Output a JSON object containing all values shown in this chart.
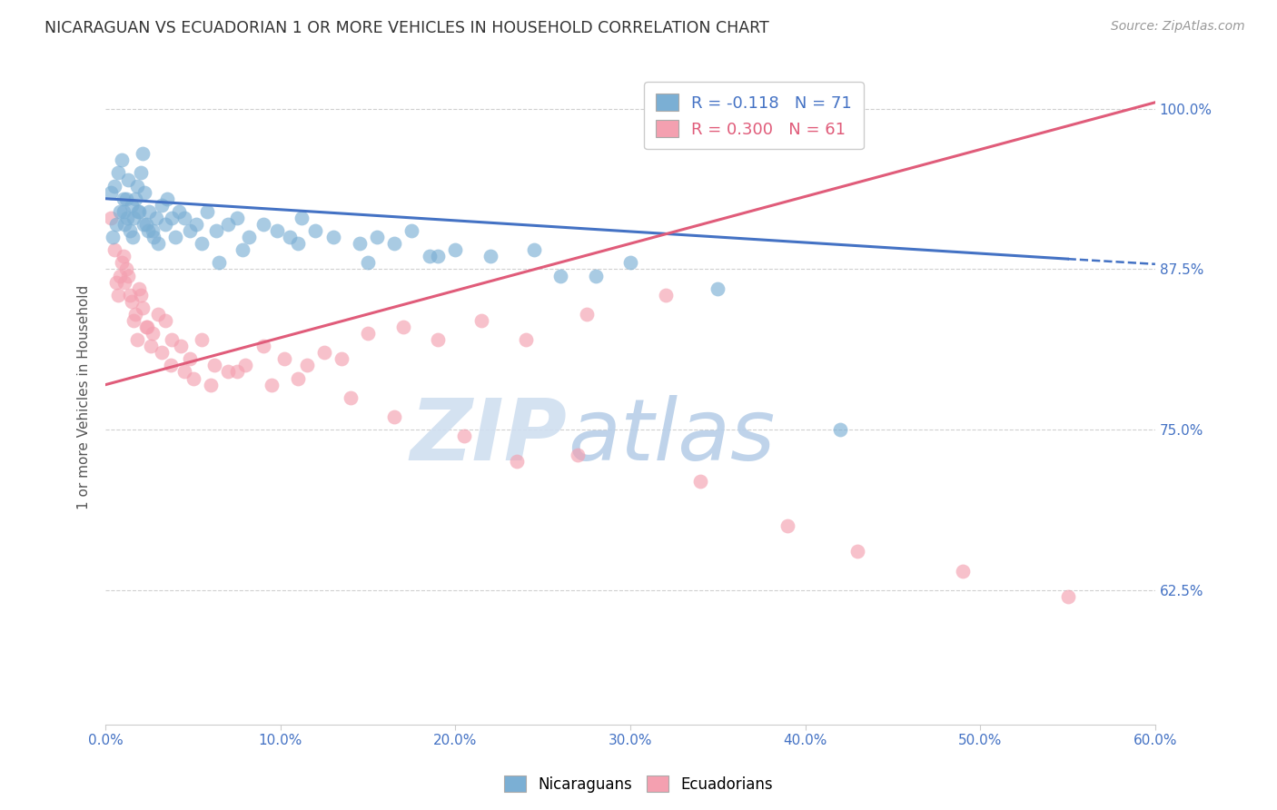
{
  "title": "NICARAGUAN VS ECUADORIAN 1 OR MORE VEHICLES IN HOUSEHOLD CORRELATION CHART",
  "source": "Source: ZipAtlas.com",
  "ylabel": "1 or more Vehicles in Household",
  "xmin": 0.0,
  "xmax": 60.0,
  "ymin": 52.0,
  "ymax": 103.0,
  "yticks": [
    62.5,
    75.0,
    87.5,
    100.0
  ],
  "xticks": [
    0.0,
    10.0,
    20.0,
    30.0,
    40.0,
    50.0,
    60.0
  ],
  "blue_R": -0.118,
  "blue_N": 71,
  "pink_R": 0.3,
  "pink_N": 61,
  "blue_color": "#7bafd4",
  "pink_color": "#f4a0b0",
  "blue_line_color": "#4472c4",
  "pink_line_color": "#e05c7a",
  "watermark_zip": "ZIP",
  "watermark_atlas": "atlas",
  "watermark_color_zip": "#d0dff0",
  "watermark_color_atlas": "#b8cfe8",
  "legend_blue_label": "Nicaraguans",
  "legend_pink_label": "Ecuadorians",
  "blue_trend_x0": 0.0,
  "blue_trend_y0": 93.0,
  "blue_trend_x1": 55.0,
  "blue_trend_y1": 88.3,
  "blue_dash_x0": 55.0,
  "blue_dash_y0": 88.3,
  "blue_dash_x1": 60.0,
  "blue_dash_y1": 87.9,
  "pink_trend_x0": 0.0,
  "pink_trend_y0": 78.5,
  "pink_trend_x1": 60.0,
  "pink_trend_y1": 100.5,
  "blue_scatter_x": [
    0.3,
    0.5,
    0.7,
    0.9,
    1.0,
    1.1,
    1.2,
    1.3,
    1.4,
    1.5,
    1.6,
    1.7,
    1.8,
    1.9,
    2.0,
    2.1,
    2.2,
    2.3,
    2.5,
    2.7,
    2.9,
    3.2,
    3.5,
    3.8,
    4.2,
    4.8,
    5.2,
    5.8,
    6.3,
    7.0,
    7.5,
    8.2,
    9.0,
    9.8,
    10.5,
    11.2,
    12.0,
    13.0,
    14.5,
    15.5,
    16.5,
    17.5,
    18.5,
    20.0,
    22.0,
    24.5,
    26.0,
    30.0,
    35.0,
    0.4,
    0.6,
    0.8,
    1.05,
    1.25,
    1.55,
    1.85,
    2.15,
    2.45,
    2.75,
    3.0,
    3.4,
    4.0,
    4.5,
    5.5,
    6.5,
    7.8,
    11.0,
    15.0,
    19.0,
    28.0,
    42.0
  ],
  "blue_scatter_y": [
    93.5,
    94.0,
    95.0,
    96.0,
    92.0,
    91.0,
    93.0,
    94.5,
    90.5,
    92.5,
    91.5,
    93.0,
    94.0,
    92.0,
    95.0,
    96.5,
    93.5,
    91.0,
    92.0,
    90.5,
    91.5,
    92.5,
    93.0,
    91.5,
    92.0,
    90.5,
    91.0,
    92.0,
    90.5,
    91.0,
    91.5,
    90.0,
    91.0,
    90.5,
    90.0,
    91.5,
    90.5,
    90.0,
    89.5,
    90.0,
    89.5,
    90.5,
    88.5,
    89.0,
    88.5,
    89.0,
    87.0,
    88.0,
    86.0,
    90.0,
    91.0,
    92.0,
    93.0,
    91.5,
    90.0,
    92.0,
    91.0,
    90.5,
    90.0,
    89.5,
    91.0,
    90.0,
    91.5,
    89.5,
    88.0,
    89.0,
    89.5,
    88.0,
    88.5,
    87.0,
    75.0
  ],
  "pink_scatter_x": [
    0.3,
    0.5,
    0.7,
    0.9,
    1.1,
    1.3,
    1.5,
    1.7,
    1.9,
    2.1,
    2.4,
    2.7,
    3.0,
    3.4,
    3.8,
    4.3,
    4.8,
    5.5,
    6.2,
    7.0,
    8.0,
    9.0,
    10.2,
    11.5,
    12.5,
    13.5,
    15.0,
    17.0,
    19.0,
    21.5,
    24.0,
    27.5,
    32.0,
    0.6,
    0.8,
    1.0,
    1.2,
    1.4,
    1.6,
    1.8,
    2.0,
    2.3,
    2.6,
    3.2,
    3.7,
    4.5,
    5.0,
    6.0,
    7.5,
    9.5,
    11.0,
    14.0,
    16.5,
    20.5,
    23.5,
    27.0,
    34.0,
    39.0,
    43.0,
    49.0,
    55.0
  ],
  "pink_scatter_y": [
    91.5,
    89.0,
    85.5,
    88.0,
    86.5,
    87.0,
    85.0,
    84.0,
    86.0,
    84.5,
    83.0,
    82.5,
    84.0,
    83.5,
    82.0,
    81.5,
    80.5,
    82.0,
    80.0,
    79.5,
    80.0,
    81.5,
    80.5,
    80.0,
    81.0,
    80.5,
    82.5,
    83.0,
    82.0,
    83.5,
    82.0,
    84.0,
    85.5,
    86.5,
    87.0,
    88.5,
    87.5,
    85.5,
    83.5,
    82.0,
    85.5,
    83.0,
    81.5,
    81.0,
    80.0,
    79.5,
    79.0,
    78.5,
    79.5,
    78.5,
    79.0,
    77.5,
    76.0,
    74.5,
    72.5,
    73.0,
    71.0,
    67.5,
    65.5,
    64.0,
    62.0
  ]
}
